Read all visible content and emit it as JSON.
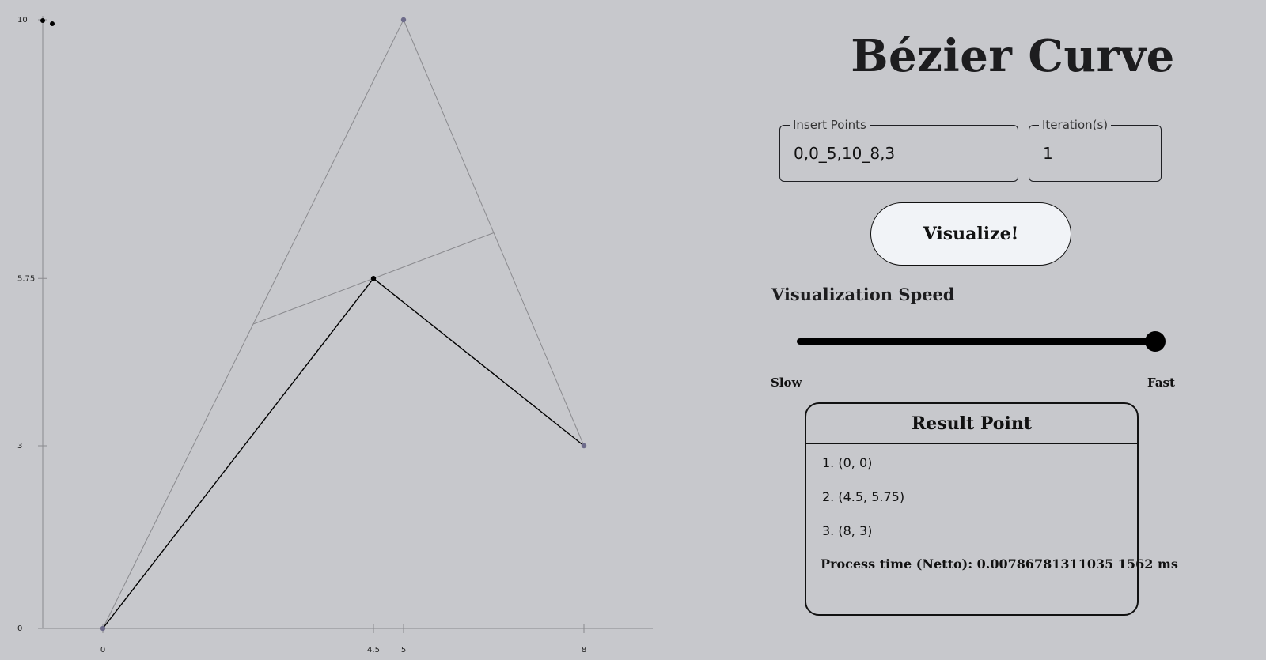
{
  "app": {
    "title": "Bézier Curve"
  },
  "inputs": {
    "points": {
      "legend": "Insert Points",
      "value": "0,0_5,10_8,3"
    },
    "iterations": {
      "legend": "Iteration(s)",
      "value": "1"
    }
  },
  "visualize_button": {
    "label": "Visualize!"
  },
  "speed": {
    "label": "Visualization Speed",
    "min_label": "Slow",
    "max_label": "Fast",
    "value_fraction": 1.0
  },
  "result": {
    "title": "Result Point",
    "items": [
      "1. (0, 0)",
      "2. (4.5, 5.75)",
      "3. (8, 3)"
    ],
    "process_time": "Process time (Netto): 0.00786781311035 1562 ms"
  },
  "chart_data": {
    "type": "line",
    "x_ticks": [
      "0",
      "4.5",
      "5",
      "8"
    ],
    "y_ticks": [
      "0",
      "3",
      "5.75",
      "10"
    ],
    "control_points": [
      [
        0,
        0
      ],
      [
        5,
        10
      ],
      [
        8,
        3
      ]
    ],
    "midpoints": [
      [
        2.5,
        5
      ],
      [
        6.5,
        6.5
      ]
    ],
    "series": [
      {
        "values": [
          [
            0,
            0
          ],
          [
            4.5,
            5.75
          ],
          [
            8,
            3
          ]
        ]
      }
    ],
    "colors": {
      "control_point": "#6d6b8a",
      "curve_point": "#000000",
      "control_line": "#8a8a8e",
      "curve_line": "#000000"
    },
    "xlim": [
      0,
      8
    ],
    "ylim": [
      0,
      10
    ]
  }
}
